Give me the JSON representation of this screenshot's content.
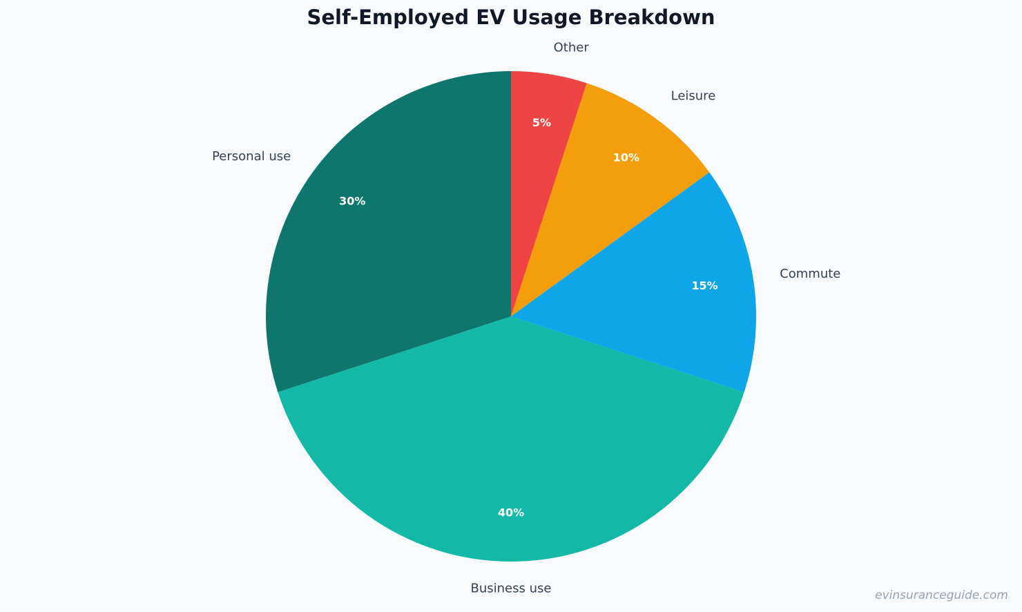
{
  "chart_data": {
    "type": "pie",
    "title": "Self-Employed EV Usage Breakdown",
    "categories": [
      "Business use",
      "Commute",
      "Leisure",
      "Other",
      "Personal use"
    ],
    "values": [
      40,
      15,
      10,
      5,
      30
    ],
    "value_labels": [
      "40%",
      "15%",
      "10%",
      "5%",
      "30%"
    ],
    "colors": [
      "#14b8a6",
      "#0ea5e9",
      "#f59e0b",
      "#ef4444",
      "#0f766e"
    ],
    "legend": "none",
    "label_placement": "outside",
    "value_label_placement": "inside"
  },
  "watermark": "evinsuranceguide.com"
}
